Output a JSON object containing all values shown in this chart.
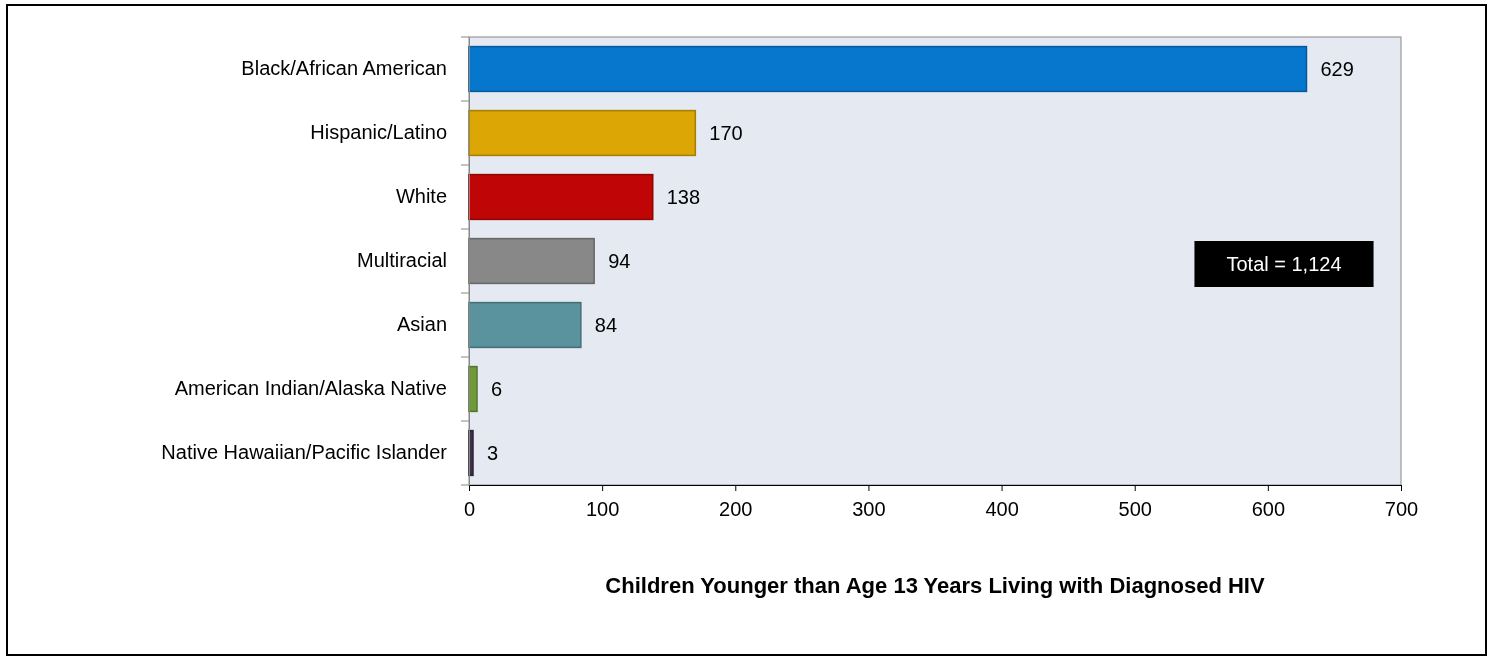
{
  "chart_data": {
    "type": "bar",
    "orientation": "horizontal",
    "categories": [
      "Black/African American",
      "Hispanic/Latino",
      "White",
      "Multiracial",
      "Asian",
      "American Indian/Alaska Native",
      "Native Hawaiian/Pacific Islander"
    ],
    "values": [
      629,
      170,
      138,
      94,
      84,
      6,
      3
    ],
    "colors": [
      "#0677cc",
      "#dca605",
      "#bf0505",
      "#888888",
      "#5a929e",
      "#6f9a3a",
      "#3c2f4a"
    ],
    "xlim": [
      0,
      700
    ],
    "xticks": [
      0,
      100,
      200,
      300,
      400,
      500,
      600,
      700
    ],
    "xlabel": "Children Younger than Age 13 Years Living with Diagnosed HIV",
    "annotations": [
      "Total = 1,124"
    ],
    "data_labels": true
  }
}
